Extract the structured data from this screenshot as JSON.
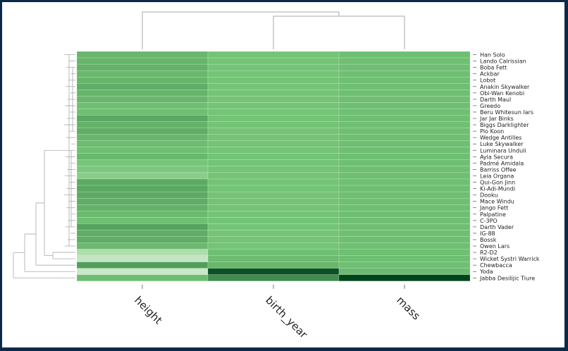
{
  "chart_data": {
    "type": "heatmap",
    "title": "",
    "xlabel": "",
    "ylabel": "",
    "colormap": {
      "name": "Greens",
      "low": "#f7fcf5",
      "mid": "#74c476",
      "high": "#00441b"
    },
    "columns": [
      "height",
      "birth_year",
      "mass"
    ],
    "rows": [
      "Han Solo",
      "Lando Calrissian",
      "Boba Fett",
      "Ackbar",
      "Lobot",
      "Anakin Skywalker",
      "Obi-Wan Kenobi",
      "Darth Maul",
      "Greedo",
      "Beru Whitesun lars",
      "Jar Jar Binks",
      "Biggs Darklighter",
      "Plo Koon",
      "Wedge Antilles",
      "Luke Skywalker",
      "Luminara Unduli",
      "Ayla Secura",
      "Padmé Amidala",
      "Barriss Offee",
      "Leia Organa",
      "Qui-Gon Jinn",
      "Ki-Adi-Mundi",
      "Dooku",
      "Mace Windu",
      "Jango Fett",
      "Palpatine",
      "C-3PO",
      "Darth Vader",
      "IG-88",
      "Bossk",
      "Owen Lars",
      "R2-D2",
      "Wicket Systri Warrick",
      "Chewbacca",
      "Yoda",
      "Jabba Desilijic Tiure"
    ],
    "values_scale": "normalized 0-1 intensity per column",
    "values": [
      [
        0.55,
        0.5,
        0.52
      ],
      [
        0.56,
        0.5,
        0.52
      ],
      [
        0.57,
        0.5,
        0.52
      ],
      [
        0.55,
        0.5,
        0.52
      ],
      [
        0.56,
        0.5,
        0.52
      ],
      [
        0.59,
        0.5,
        0.52
      ],
      [
        0.56,
        0.5,
        0.52
      ],
      [
        0.55,
        0.5,
        0.52
      ],
      [
        0.52,
        0.5,
        0.52
      ],
      [
        0.52,
        0.5,
        0.52
      ],
      [
        0.61,
        0.5,
        0.52
      ],
      [
        0.57,
        0.5,
        0.52
      ],
      [
        0.59,
        0.5,
        0.52
      ],
      [
        0.55,
        0.5,
        0.52
      ],
      [
        0.53,
        0.5,
        0.52
      ],
      [
        0.52,
        0.5,
        0.52
      ],
      [
        0.55,
        0.5,
        0.52
      ],
      [
        0.49,
        0.5,
        0.52
      ],
      [
        0.47,
        0.5,
        0.52
      ],
      [
        0.42,
        0.5,
        0.52
      ],
      [
        0.6,
        0.5,
        0.52
      ],
      [
        0.61,
        0.5,
        0.52
      ],
      [
        0.6,
        0.5,
        0.52
      ],
      [
        0.59,
        0.5,
        0.52
      ],
      [
        0.57,
        0.5,
        0.52
      ],
      [
        0.54,
        0.5,
        0.52
      ],
      [
        0.52,
        0.5,
        0.52
      ],
      [
        0.63,
        0.5,
        0.52
      ],
      [
        0.59,
        0.5,
        0.52
      ],
      [
        0.59,
        0.5,
        0.52
      ],
      [
        0.54,
        0.5,
        0.52
      ],
      [
        0.28,
        0.52,
        0.52
      ],
      [
        0.2,
        0.53,
        0.52
      ],
      [
        0.65,
        0.55,
        0.52
      ],
      [
        0.18,
        0.95,
        0.54
      ],
      [
        0.53,
        0.72,
        1.0
      ]
    ]
  }
}
